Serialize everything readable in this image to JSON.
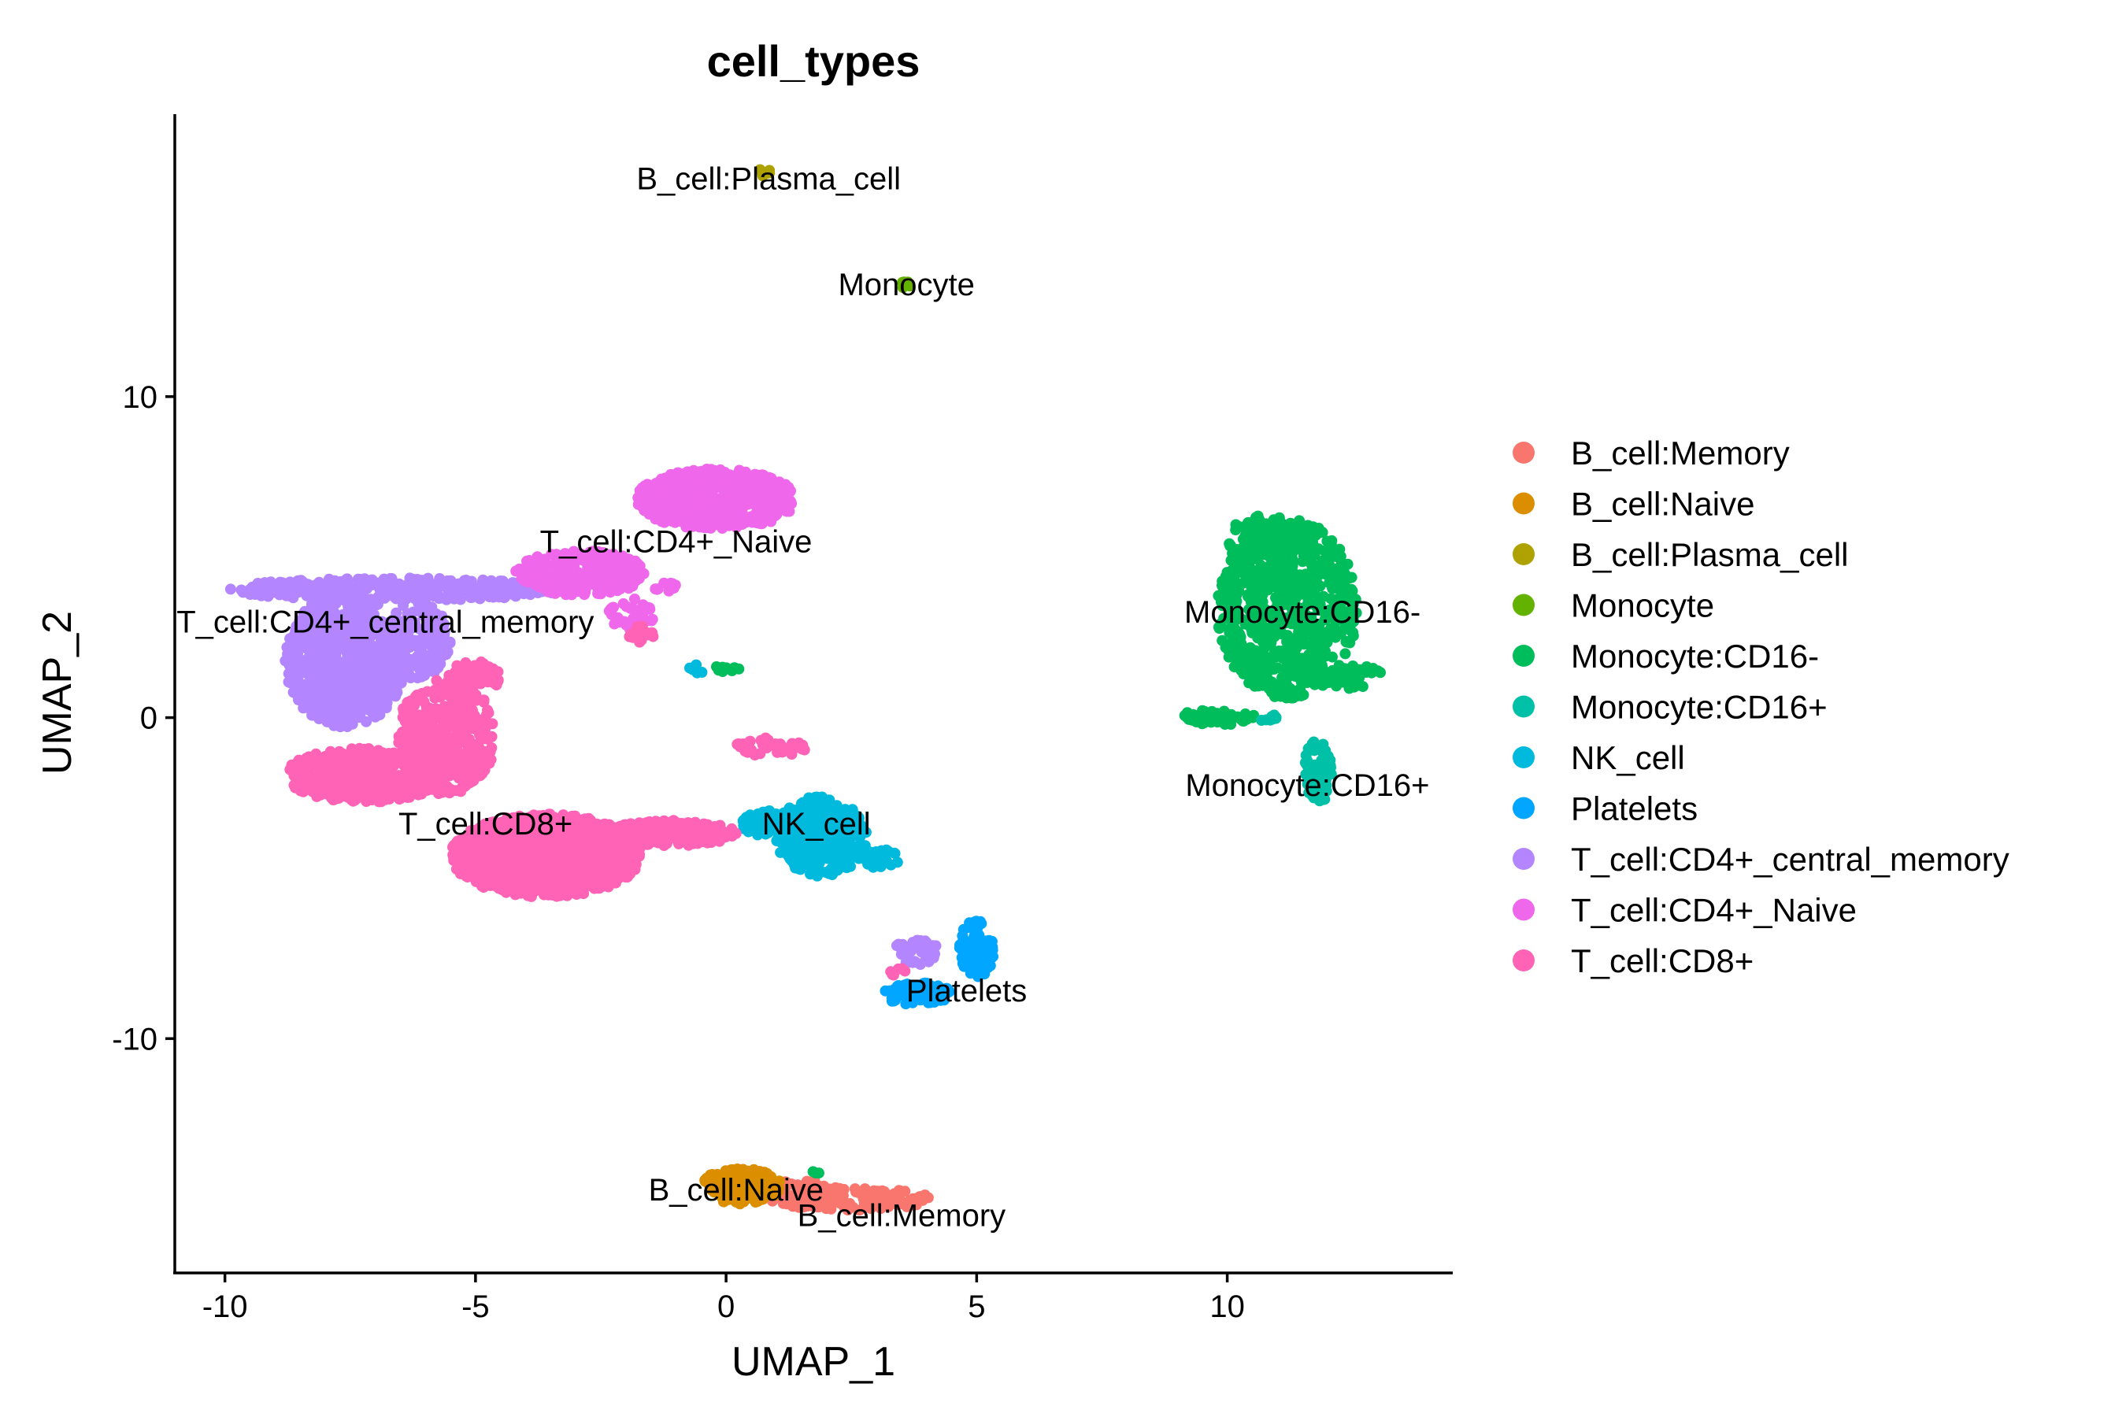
{
  "chart_data": {
    "type": "scatter",
    "title": "cell_types",
    "xlabel": "UMAP_1",
    "ylabel": "UMAP_2",
    "xlim": [
      -11,
      14.5
    ],
    "ylim": [
      -17.3,
      18.8
    ],
    "xticks": [
      -10,
      -5,
      0,
      5,
      10
    ],
    "yticks": [
      -10,
      0,
      10
    ],
    "xtick_labels": [
      "-10",
      "-5",
      "0",
      "5",
      "10"
    ],
    "ytick_labels": [
      "-10",
      "0",
      "10"
    ],
    "grid": false,
    "legend_position": "right",
    "series": [
      {
        "name": "B_cell:Memory",
        "color": "#F8766D",
        "label": "B_cell:Memory",
        "label_x": 3.5,
        "label_y": -15.5,
        "shapes": [
          {
            "shape": "ellipse",
            "cx": 2.5,
            "cy": -15.0,
            "rx": 1.6,
            "ry": 0.35,
            "n": 130
          },
          {
            "shape": "ellipse",
            "cx": 1.6,
            "cy": -14.7,
            "rx": 0.7,
            "ry": 0.3,
            "n": 30
          }
        ]
      },
      {
        "name": "B_cell:Naive",
        "color": "#DB8E00",
        "label": "B_cell:Naive",
        "label_x": 0.2,
        "label_y": -14.7,
        "shapes": [
          {
            "shape": "ellipse",
            "cx": 0.3,
            "cy": -14.6,
            "rx": 0.8,
            "ry": 0.55,
            "n": 170
          }
        ]
      },
      {
        "name": "B_cell:Plasma_cell",
        "color": "#AEA200",
        "label": "B_cell:Plasma_cell",
        "label_x": 0.85,
        "label_y": 16.8,
        "shapes": [
          {
            "shape": "ellipse",
            "cx": 0.75,
            "cy": 16.9,
            "rx": 0.18,
            "ry": 0.22,
            "n": 8
          }
        ]
      },
      {
        "name": "Monocyte",
        "color": "#64B200",
        "label": "Monocyte",
        "label_x": 3.6,
        "label_y": 13.5,
        "shapes": [
          {
            "shape": "ellipse",
            "cx": 3.6,
            "cy": 13.5,
            "rx": 0.12,
            "ry": 0.15,
            "n": 5
          }
        ]
      },
      {
        "name": "Monocyte:CD16-",
        "color": "#00BD5C",
        "label": "Monocyte:CD16-",
        "label_x": 11.5,
        "label_y": 3.3,
        "shapes": [
          {
            "shape": "ellipse",
            "cx": 11.2,
            "cy": 3.4,
            "rx": 1.4,
            "ry": 2.8,
            "n": 700
          },
          {
            "shape": "ellipse",
            "cx": 10.8,
            "cy": 5.6,
            "rx": 0.8,
            "ry": 0.7,
            "n": 100
          },
          {
            "shape": "ellipse",
            "cx": 12.3,
            "cy": 1.3,
            "rx": 0.8,
            "ry": 0.4,
            "n": 60
          },
          {
            "shape": "ellipse",
            "cx": 9.8,
            "cy": 0.0,
            "rx": 0.8,
            "ry": 0.25,
            "n": 50
          },
          {
            "shape": "ellipse",
            "cx": 0.0,
            "cy": 1.5,
            "rx": 0.3,
            "ry": 0.12,
            "n": 10
          },
          {
            "shape": "ellipse",
            "cx": 1.8,
            "cy": -14.2,
            "rx": 0.1,
            "ry": 0.1,
            "n": 3
          }
        ]
      },
      {
        "name": "Monocyte:CD16+",
        "color": "#00C1A7",
        "label": "Monocyte:CD16+",
        "label_x": 11.6,
        "label_y": -2.1,
        "shapes": [
          {
            "shape": "ellipse",
            "cx": 11.8,
            "cy": -1.7,
            "rx": 0.28,
            "ry": 1.0,
            "n": 80
          },
          {
            "shape": "ellipse",
            "cx": 10.8,
            "cy": 0.0,
            "rx": 0.2,
            "ry": 0.15,
            "n": 8
          }
        ]
      },
      {
        "name": "NK_cell",
        "color": "#00BADE",
        "label": "NK_cell",
        "label_x": 1.8,
        "label_y": -3.3,
        "shapes": [
          {
            "shape": "ellipse",
            "cx": 1.9,
            "cy": -3.7,
            "rx": 0.9,
            "ry": 1.25,
            "n": 320
          },
          {
            "shape": "ellipse",
            "cx": 0.9,
            "cy": -3.3,
            "rx": 0.6,
            "ry": 0.4,
            "n": 70
          },
          {
            "shape": "ellipse",
            "cx": 3.1,
            "cy": -4.4,
            "rx": 0.35,
            "ry": 0.3,
            "n": 25
          },
          {
            "shape": "ellipse",
            "cx": -0.6,
            "cy": 1.5,
            "rx": 0.15,
            "ry": 0.15,
            "n": 6
          }
        ]
      },
      {
        "name": "Platelets",
        "color": "#00A6FF",
        "label": "Platelets",
        "label_x": 4.8,
        "label_y": -8.5,
        "shapes": [
          {
            "shape": "ellipse",
            "cx": 5.0,
            "cy": -7.2,
            "rx": 0.35,
            "ry": 0.9,
            "n": 90
          },
          {
            "shape": "ellipse",
            "cx": 3.8,
            "cy": -8.6,
            "rx": 0.7,
            "ry": 0.35,
            "n": 70
          }
        ]
      },
      {
        "name": "T_cell:CD4+_central_memory",
        "color": "#B385FF",
        "label": "T_cell:CD4+_central_memory",
        "label_x": -6.8,
        "label_y": 3.0,
        "shapes": [
          {
            "shape": "ellipse",
            "cx": -7.6,
            "cy": 1.8,
            "rx": 1.2,
            "ry": 2.1,
            "n": 700
          },
          {
            "shape": "ellipse",
            "cx": -6.6,
            "cy": 4.0,
            "rx": 3.3,
            "ry": 0.35,
            "n": 360
          },
          {
            "shape": "ellipse",
            "cx": -6.2,
            "cy": 2.4,
            "rx": 0.7,
            "ry": 1.2,
            "n": 150
          },
          {
            "shape": "ellipse",
            "cx": 3.8,
            "cy": -7.3,
            "rx": 0.5,
            "ry": 0.4,
            "n": 40
          }
        ]
      },
      {
        "name": "T_cell:CD4+_Naive",
        "color": "#EF67EB",
        "label": "T_cell:CD4+_Naive",
        "label_x": -1.0,
        "label_y": 5.5,
        "shapes": [
          {
            "shape": "ellipse",
            "cx": -0.2,
            "cy": 6.8,
            "rx": 1.6,
            "ry": 0.95,
            "n": 520
          },
          {
            "shape": "ellipse",
            "cx": -2.9,
            "cy": 4.5,
            "rx": 1.3,
            "ry": 0.7,
            "n": 320
          },
          {
            "shape": "ellipse",
            "cx": -1.9,
            "cy": 3.2,
            "rx": 0.45,
            "ry": 0.6,
            "n": 40
          },
          {
            "shape": "ellipse",
            "cx": -1.2,
            "cy": 4.1,
            "rx": 0.25,
            "ry": 0.2,
            "n": 10
          }
        ]
      },
      {
        "name": "T_cell:CD8+",
        "color": "#FF63B6",
        "label": "T_cell:CD8+",
        "label_x": -4.8,
        "label_y": -3.3,
        "shapes": [
          {
            "shape": "ellipse",
            "cx": -3.6,
            "cy": -4.3,
            "rx": 1.9,
            "ry": 1.3,
            "n": 1000
          },
          {
            "shape": "ellipse",
            "cx": -7.2,
            "cy": -1.8,
            "rx": 1.6,
            "ry": 0.85,
            "n": 500
          },
          {
            "shape": "ellipse",
            "cx": -5.6,
            "cy": -0.6,
            "rx": 1.0,
            "ry": 1.8,
            "n": 380
          },
          {
            "shape": "ellipse",
            "cx": -1.1,
            "cy": -3.6,
            "rx": 1.3,
            "ry": 0.4,
            "n": 220
          },
          {
            "shape": "ellipse",
            "cx": -5.0,
            "cy": 1.3,
            "rx": 0.55,
            "ry": 0.45,
            "n": 60
          },
          {
            "shape": "ellipse",
            "cx": 0.9,
            "cy": -0.9,
            "rx": 0.75,
            "ry": 0.3,
            "n": 45
          },
          {
            "shape": "ellipse",
            "cx": -1.7,
            "cy": 2.6,
            "rx": 0.3,
            "ry": 0.25,
            "n": 15
          },
          {
            "shape": "ellipse",
            "cx": 3.4,
            "cy": -7.9,
            "rx": 0.2,
            "ry": 0.15,
            "n": 6
          }
        ]
      }
    ]
  }
}
